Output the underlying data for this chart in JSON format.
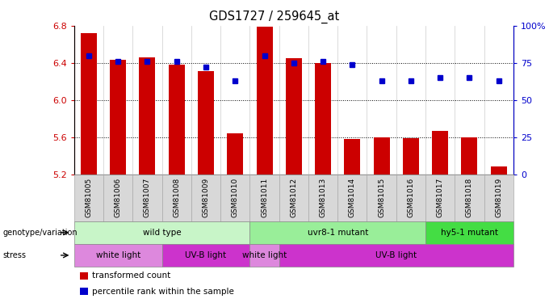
{
  "title": "GDS1727 / 259645_at",
  "samples": [
    "GSM81005",
    "GSM81006",
    "GSM81007",
    "GSM81008",
    "GSM81009",
    "GSM81010",
    "GSM81011",
    "GSM81012",
    "GSM81013",
    "GSM81014",
    "GSM81015",
    "GSM81016",
    "GSM81017",
    "GSM81018",
    "GSM81019"
  ],
  "bar_values": [
    6.72,
    6.43,
    6.46,
    6.38,
    6.31,
    5.64,
    6.79,
    6.45,
    6.4,
    5.58,
    5.6,
    5.59,
    5.67,
    5.6,
    5.28
  ],
  "dot_values": [
    80,
    76,
    76,
    76,
    72,
    63,
    80,
    75,
    76,
    74,
    63,
    63,
    65,
    65,
    63
  ],
  "bar_color": "#cc0000",
  "dot_color": "#0000cc",
  "ylim_left": [
    5.2,
    6.8
  ],
  "ylim_right": [
    0,
    100
  ],
  "yticks_left": [
    5.2,
    5.6,
    6.0,
    6.4,
    6.8
  ],
  "yticks_right": [
    0,
    25,
    50,
    75,
    100
  ],
  "ytick_labels_right": [
    "0",
    "25",
    "50",
    "75",
    "100%"
  ],
  "grid_values": [
    5.6,
    6.0,
    6.4
  ],
  "genotype_groups": [
    {
      "label": "wild type",
      "start": 0,
      "end": 6,
      "color": "#c8f5c8"
    },
    {
      "label": "uvr8-1 mutant",
      "start": 6,
      "end": 12,
      "color": "#99ee99"
    },
    {
      "label": "hy5-1 mutant",
      "start": 12,
      "end": 15,
      "color": "#44dd44"
    }
  ],
  "stress_groups": [
    {
      "label": "white light",
      "start": 0,
      "end": 3,
      "color": "#dd88dd"
    },
    {
      "label": "UV-B light",
      "start": 3,
      "end": 6,
      "color": "#cc33cc"
    },
    {
      "label": "white light",
      "start": 6,
      "end": 7,
      "color": "#dd88dd"
    },
    {
      "label": "UV-B light",
      "start": 7,
      "end": 15,
      "color": "#cc33cc"
    }
  ],
  "legend_items": [
    {
      "label": "transformed count",
      "color": "#cc0000"
    },
    {
      "label": "percentile rank within the sample",
      "color": "#0000cc"
    }
  ],
  "bg_color": "#ffffff",
  "tick_label_color_left": "#cc0000",
  "tick_label_color_right": "#0000cc",
  "row_label_genotype": "genotype/variation",
  "row_label_stress": "stress",
  "bar_bottom": 5.2,
  "sample_box_color": "#d8d8d8"
}
